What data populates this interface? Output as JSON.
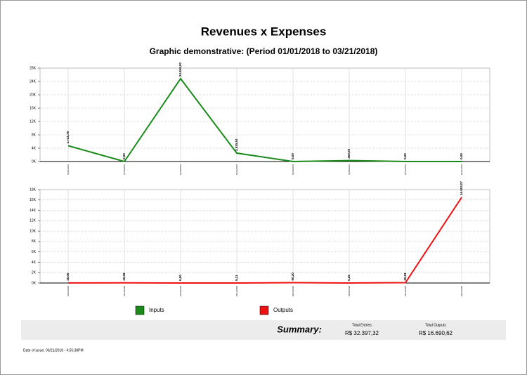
{
  "chart_data": [
    {
      "type": "line",
      "categories": [
        "01/01/2018",
        "01/15/2018",
        "01/29/2018",
        "02/12/2018",
        "02/26/2018",
        "03/05/2018",
        "03/12/2018",
        "03/21/2018"
      ],
      "series": [
        {
          "name": "Inputs",
          "color": "#1a8a1a",
          "values": [
            4733.78,
            0,
            24848.0,
            2515.54,
            0,
            300.0,
            0,
            0
          ],
          "value_labels": [
            "4.733,78",
            "0,00",
            "24.848,00",
            "2.515,54",
            "0,00",
            "300,00",
            "0,00",
            "0,00"
          ]
        }
      ],
      "ylim": [
        0,
        28000
      ],
      "yticks": [
        {
          "value": 0,
          "label": "0K"
        },
        {
          "value": 4000,
          "label": "4K"
        },
        {
          "value": 8000,
          "label": "8K"
        },
        {
          "value": 12000,
          "label": "12K"
        },
        {
          "value": 16000,
          "label": "16K"
        },
        {
          "value": 20000,
          "label": "20K"
        },
        {
          "value": 24000,
          "label": "24K"
        },
        {
          "value": 28000,
          "label": "28K"
        }
      ],
      "grid": true
    },
    {
      "type": "line",
      "categories": [
        "01/01/2018",
        "01/15/2018",
        "01/29/2018",
        "02/12/2018",
        "02/26/2018",
        "03/05/2018",
        "03/12/2018",
        "03/21/2018"
      ],
      "series": [
        {
          "name": "Outputs",
          "color": "#ee1111",
          "values": [
            15.0,
            40.08,
            0,
            5.11,
            60.2,
            6.25,
            60.91,
            16503.07
          ],
          "value_labels": [
            "15,00",
            "40,08",
            "0,00",
            "5,11",
            "60,20",
            "6,25",
            "60,91",
            "16.503,07"
          ]
        }
      ],
      "ylim": [
        0,
        18000
      ],
      "yticks": [
        {
          "value": 0,
          "label": "0K"
        },
        {
          "value": 2000,
          "label": "2K"
        },
        {
          "value": 4000,
          "label": "4K"
        },
        {
          "value": 6000,
          "label": "6K"
        },
        {
          "value": 8000,
          "label": "8K"
        },
        {
          "value": 10000,
          "label": "10K"
        },
        {
          "value": 12000,
          "label": "12K"
        },
        {
          "value": 14000,
          "label": "14K"
        },
        {
          "value": 16000,
          "label": "16K"
        },
        {
          "value": 18000,
          "label": "18K"
        }
      ],
      "grid": true
    }
  ],
  "title": "Revenues x Expenses",
  "subtitle": "Graphic demonstrative: (Period 01/01/2018 to 03/21/2018)",
  "summary": {
    "label": "Summary:",
    "entries_label": "Total Entries",
    "entries_value": "R$ 32.397,32",
    "outputs_label": "Total Outputs",
    "outputs_value": "R$ 16.690,62"
  },
  "issue_date": "Date of issue: 03/21/2018 - 4:55:38PM"
}
